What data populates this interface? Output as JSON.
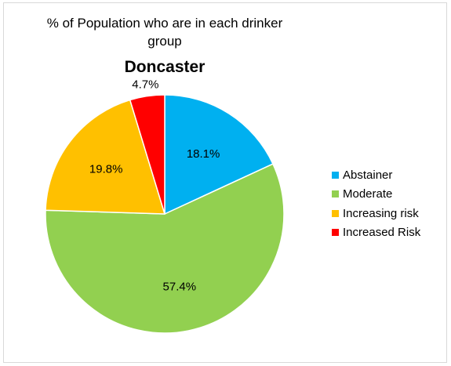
{
  "chart_data": {
    "type": "pie",
    "title": "% of Population who are in each drinker group",
    "title_line1": "% of Population  who are in each drinker",
    "title_line2": "group",
    "subtitle": "Doncaster",
    "legend_position": "right",
    "slices": [
      {
        "name": "Abstainer",
        "value": 18.1,
        "label": "18.1%",
        "color": "#00b0f0"
      },
      {
        "name": "Moderate",
        "value": 57.4,
        "label": "57.4%",
        "color": "#92d050"
      },
      {
        "name": "Increasing risk",
        "value": 19.8,
        "label": "19.8%",
        "color": "#ffc000"
      },
      {
        "name": "Increased Risk",
        "value": 4.7,
        "label": "4.7%",
        "color": "#ff0000"
      }
    ]
  }
}
